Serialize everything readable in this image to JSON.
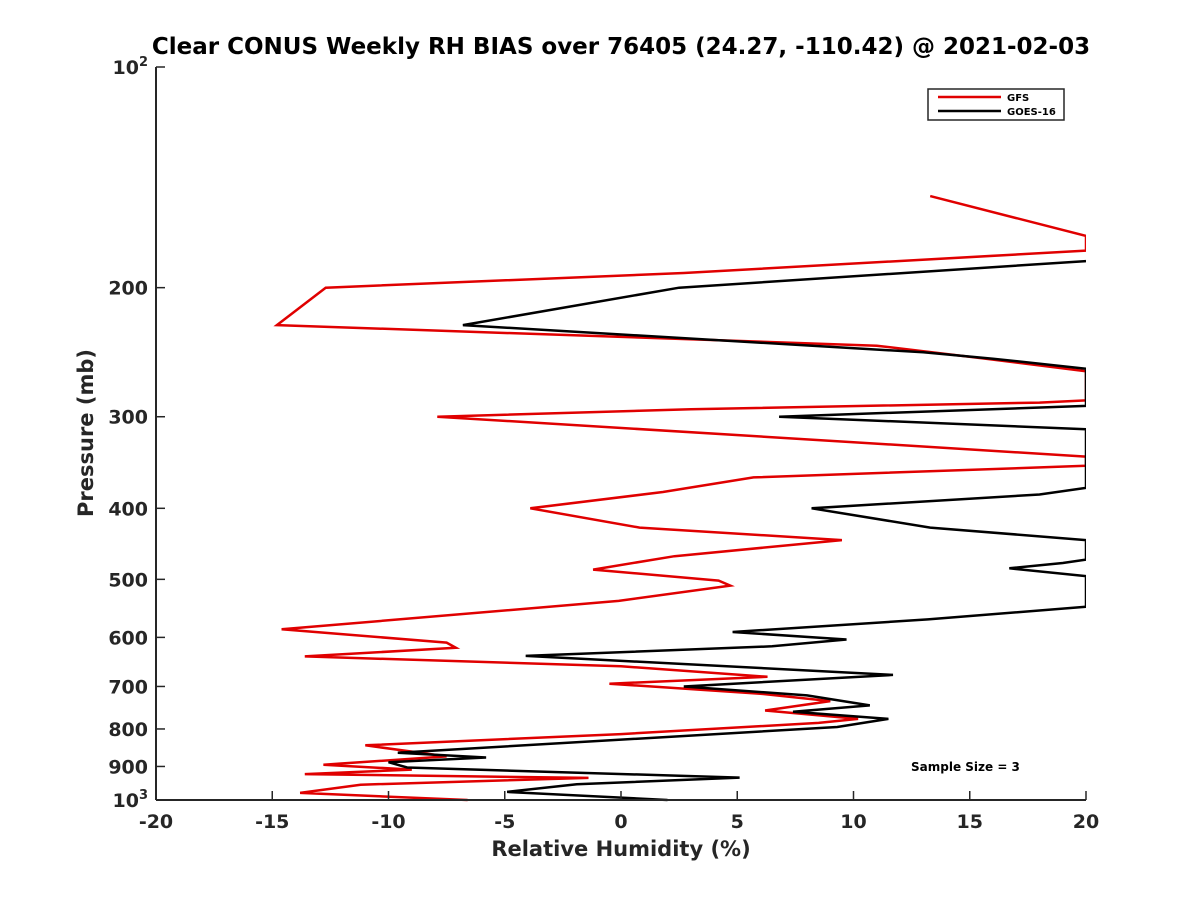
{
  "chart_data": {
    "type": "line",
    "title": "Clear CONUS Weekly RH BIAS over 76405 (24.27, -110.42) @ 2021-02-03",
    "xlabel": "Relative Humidity (%)",
    "ylabel": "Pressure (mb)",
    "xlim": [
      -20,
      20
    ],
    "ylim": [
      100,
      1000
    ],
    "yscale": "log",
    "y_reversed": true,
    "grid": false,
    "legend_position": "top-right",
    "x_ticks": [
      "-20",
      "-15",
      "-10",
      "-5",
      "0",
      "5",
      "10",
      "15",
      "20"
    ],
    "y_ticks": [
      {
        "value": 100,
        "base": "10",
        "exp": "2"
      },
      {
        "value": 200,
        "label": "200"
      },
      {
        "value": 300,
        "label": "300"
      },
      {
        "value": 400,
        "label": "400"
      },
      {
        "value": 500,
        "label": "500"
      },
      {
        "value": 600,
        "label": "600"
      },
      {
        "value": 700,
        "label": "700"
      },
      {
        "value": 800,
        "label": "800"
      },
      {
        "value": 900,
        "label": "900"
      },
      {
        "value": 1000,
        "base": "10",
        "exp": "3"
      }
    ],
    "annotation": "Sample Size = 3",
    "series": [
      {
        "name": "GFS",
        "color": "#e00000",
        "points": [
          [
            13.3,
            150
          ],
          [
            20,
            170
          ],
          [
            20,
            178
          ],
          [
            2.7,
            191
          ],
          [
            -12.7,
            200
          ],
          [
            -14.8,
            225
          ],
          [
            11.0,
            240
          ],
          [
            15.7,
            250
          ],
          [
            20,
            260
          ],
          [
            20,
            285
          ],
          [
            18.0,
            287
          ],
          [
            3.0,
            293
          ],
          [
            -7.9,
            300
          ],
          [
            10.0,
            325
          ],
          [
            20,
            340
          ],
          [
            20,
            350
          ],
          [
            5.7,
            363
          ],
          [
            1.8,
            380
          ],
          [
            -3.9,
            400
          ],
          [
            0.8,
            425
          ],
          [
            9.5,
            442
          ],
          [
            2.3,
            465
          ],
          [
            -1.2,
            485
          ],
          [
            4.2,
            502
          ],
          [
            4.7,
            510
          ],
          [
            -0.1,
            535
          ],
          [
            -14.6,
            585
          ],
          [
            -7.5,
            610
          ],
          [
            -7.1,
            620
          ],
          [
            -13.6,
            637
          ],
          [
            0.0,
            657
          ],
          [
            6.3,
            679
          ],
          [
            -0.5,
            694
          ],
          [
            6.0,
            716
          ],
          [
            9.0,
            733
          ],
          [
            6.2,
            755
          ],
          [
            10.2,
            775
          ],
          [
            8.5,
            785
          ],
          [
            0.0,
            813
          ],
          [
            -11.0,
            842
          ],
          [
            -7.5,
            872
          ],
          [
            -12.8,
            895
          ],
          [
            -9.0,
            909
          ],
          [
            -13.6,
            922
          ],
          [
            -1.4,
            933
          ],
          [
            -11.2,
            953
          ],
          [
            -13.8,
            978
          ],
          [
            -6.6,
            1000
          ]
        ]
      },
      {
        "name": "GOES-16",
        "color": "#000000",
        "points": [
          [
            20,
            184
          ],
          [
            2.5,
            200
          ],
          [
            -6.8,
            225
          ],
          [
            13.0,
            245
          ],
          [
            16.0,
            250
          ],
          [
            20,
            258
          ],
          [
            20,
            290
          ],
          [
            6.8,
            300
          ],
          [
            20,
            312
          ],
          [
            20,
            375
          ],
          [
            18.0,
            383
          ],
          [
            8.2,
            400
          ],
          [
            13.3,
            425
          ],
          [
            20,
            442
          ],
          [
            20,
            470
          ],
          [
            19.0,
            475
          ],
          [
            16.7,
            483
          ],
          [
            20,
            495
          ],
          [
            20,
            545
          ],
          [
            13.2,
            567
          ],
          [
            4.8,
            590
          ],
          [
            9.7,
            604
          ],
          [
            6.5,
            617
          ],
          [
            -4.1,
            636
          ],
          [
            11.7,
            675
          ],
          [
            2.7,
            700
          ],
          [
            8.0,
            720
          ],
          [
            10.7,
            743
          ],
          [
            7.4,
            758
          ],
          [
            11.5,
            775
          ],
          [
            9.3,
            795
          ],
          [
            -9.6,
            862
          ],
          [
            -5.8,
            875
          ],
          [
            -10.0,
            888
          ],
          [
            -9.2,
            903
          ],
          [
            5.1,
            932
          ],
          [
            -1.9,
            952
          ],
          [
            -4.9,
            975
          ],
          [
            2.0,
            1000
          ]
        ]
      }
    ]
  }
}
